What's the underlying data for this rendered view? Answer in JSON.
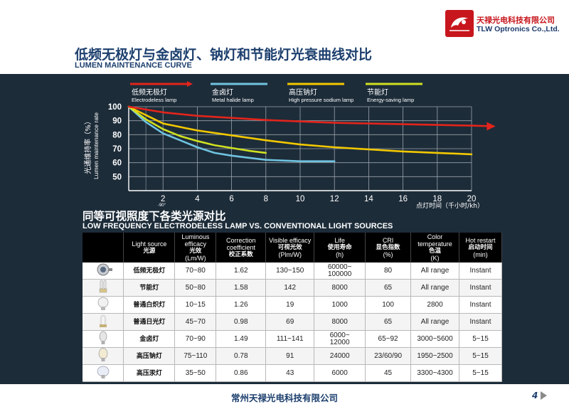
{
  "header": {
    "logo_cn": "天禄光电科技有限公司",
    "logo_en": "TLW Optronics Co.,Ltd.",
    "title_cn": "低频无极灯与金卤灯、钠灯和节能灯光衰曲线对比",
    "title_en": "LUMEN MAINTENANCE CURVE"
  },
  "chart_data": {
    "type": "line",
    "ylabel_cn": "光通维持率（%）",
    "ylabel_en": "Lumen maintenance rate",
    "xlabel": "点灯时间（千小时/kh）",
    "x_ticks": [
      2,
      4,
      6,
      8,
      10,
      12,
      14,
      16,
      18,
      20
    ],
    "y_ticks": [
      50,
      60,
      70,
      80,
      90,
      100
    ],
    "xlim": [
      0,
      20
    ],
    "ylim": [
      40,
      100
    ],
    "annotation": "-90°",
    "grid": true,
    "legend_position": "top",
    "series": [
      {
        "name_cn": "低频无极灯",
        "name_en": "Electrodeless lamp",
        "color": "#e3241b",
        "x": [
          0,
          2,
          4,
          6,
          8,
          10,
          12,
          14,
          16,
          18,
          20,
          21.3
        ],
        "y": [
          100,
          96,
          93.5,
          92,
          90.5,
          89.5,
          88.5,
          88,
          87.5,
          87,
          86.5,
          86
        ]
      },
      {
        "name_cn": "金卤灯",
        "name_en": "Metal halide lamp",
        "color": "#6fc3e0",
        "x": [
          0,
          1,
          2,
          3,
          4,
          5,
          6,
          7,
          8,
          9,
          10,
          11,
          12
        ],
        "y": [
          100,
          89,
          81,
          76,
          71,
          67,
          65,
          63.5,
          62,
          61.5,
          61,
          61,
          61
        ]
      },
      {
        "name_cn": "高压钠灯",
        "name_en": "High pressure sodium lamp",
        "color": "#f2c800",
        "x": [
          0,
          2,
          4,
          6,
          8,
          10,
          12,
          14,
          16,
          18,
          20
        ],
        "y": [
          100,
          88,
          83,
          79.5,
          76,
          73,
          71,
          69.5,
          68,
          67,
          66
        ]
      },
      {
        "name_cn": "节能灯",
        "name_en": "Energy-saving lamp",
        "color": "#cfe021",
        "x": [
          0,
          1,
          2,
          3,
          4,
          5,
          6,
          7,
          8
        ],
        "y": [
          100,
          91,
          84,
          79,
          75.5,
          72.5,
          70.5,
          68.5,
          67
        ]
      }
    ]
  },
  "section2": {
    "title_cn": "同等可视照度下各类光源对比",
    "title_en": "LOW FREQUENCY ELECTRODELESS LAMP VS. CONVENTIONAL LIGHT SOURCES"
  },
  "table": {
    "headers": [
      {
        "en": "Light source",
        "cn": "光源"
      },
      {
        "en": "Luminous efficacy",
        "cn": "光效",
        "unit": "(Lm/W)"
      },
      {
        "en": "Correction coefficient",
        "cn": "校正系数"
      },
      {
        "en": "Visible efficacy",
        "cn": "可视光效",
        "unit": "(Plm/W)"
      },
      {
        "en": "Life",
        "cn": "使用寿命",
        "unit": "(h)"
      },
      {
        "en": "CRI",
        "cn": "显色指数",
        "unit": "(%)"
      },
      {
        "en": "Color temperature",
        "cn": "色温",
        "unit": "(K)"
      },
      {
        "en": "Hot restart",
        "cn": "启动时间",
        "unit": "(min)"
      }
    ],
    "rows": [
      {
        "icon": "electrodeless-lamp-icon",
        "name": "低频无极灯",
        "efficacy": "70~80",
        "coef": "1.62",
        "visible": "130~150",
        "life": "60000~100000",
        "cri": "80",
        "ct": "All range",
        "restart": "Instant"
      },
      {
        "icon": "energy-saving-lamp-icon",
        "name": "节能灯",
        "efficacy": "50~80",
        "coef": "1.58",
        "visible": "142",
        "life": "8000",
        "cri": "65",
        "ct": "All range",
        "restart": "Instant"
      },
      {
        "icon": "incandescent-bulb-icon",
        "name": "普通白炽灯",
        "efficacy": "10~15",
        "coef": "1.26",
        "visible": "19",
        "life": "1000",
        "cri": "100",
        "ct": "2800",
        "restart": "Instant"
      },
      {
        "icon": "fluorescent-lamp-icon",
        "name": "普通日光灯",
        "efficacy": "45~70",
        "coef": "0.98",
        "visible": "69",
        "life": "8000",
        "cri": "65",
        "ct": "All range",
        "restart": "Instant"
      },
      {
        "icon": "metal-halide-lamp-icon",
        "name": "金卤灯",
        "efficacy": "70~90",
        "coef": "1.49",
        "visible": "111~141",
        "life": "6000~12000",
        "cri": "65~92",
        "ct": "3000~5600",
        "restart": "5~15"
      },
      {
        "icon": "sodium-lamp-icon",
        "name": "高压钠灯",
        "efficacy": "75~110",
        "coef": "0.78",
        "visible": "91",
        "life": "24000",
        "cri": "23/60/90",
        "ct": "1950~2500",
        "restart": "5~15"
      },
      {
        "icon": "mercury-lamp-icon",
        "name": "高压汞灯",
        "efficacy": "35~50",
        "coef": "0.86",
        "visible": "43",
        "life": "6000",
        "cri": "45",
        "ct": "3300~4300",
        "restart": "5~15"
      }
    ]
  },
  "footer": {
    "company": "常州天禄光电科技有限公司",
    "page": "4"
  }
}
